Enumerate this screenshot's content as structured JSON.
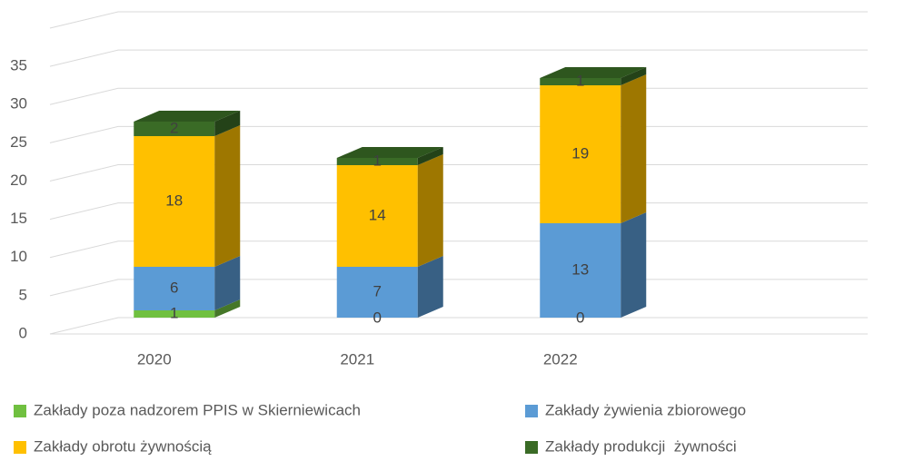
{
  "chart_data": {
    "type": "bar3d_stacked",
    "categories": [
      "2020",
      "2021",
      "2022"
    ],
    "series": [
      {
        "name": "Zakłady poza nadzorem PPIS w Skierniewicach",
        "color": "#70c040",
        "values": [
          1,
          0,
          0
        ]
      },
      {
        "name": "Zakłady żywienia zbiorowego",
        "color": "#5b9bd5",
        "values": [
          6,
          7,
          13
        ]
      },
      {
        "name": "Zakłady obrotu żywnością",
        "color": "#ffc000",
        "values": [
          18,
          14,
          19
        ]
      },
      {
        "name": "Zakłady produkcji  żywności",
        "color": "#3a6b26",
        "values": [
          2,
          1,
          1
        ]
      }
    ],
    "ylim": [
      0,
      40
    ],
    "yticks": [
      0,
      5,
      10,
      15,
      20,
      25,
      30,
      35
    ],
    "grid": true
  }
}
